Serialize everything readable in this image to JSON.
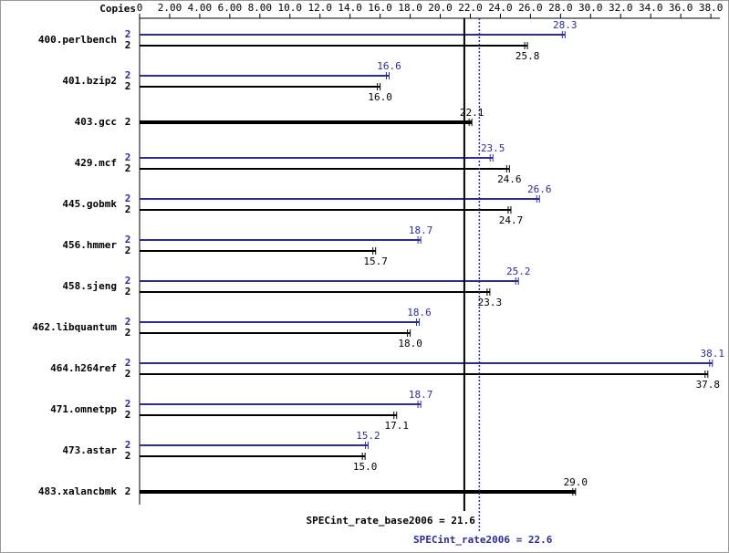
{
  "chart_data": {
    "type": "bar",
    "copies_header": "Copies",
    "categories": [
      "400.perlbench",
      "401.bzip2",
      "403.gcc",
      "429.mcf",
      "445.gobmk",
      "456.hmmer",
      "458.sjeng",
      "462.libquantum",
      "464.h264ref",
      "471.omnetpp",
      "473.astar",
      "483.xalancbmk"
    ],
    "series": [
      {
        "color": "#2b2b9b",
        "copies": [
          2,
          2,
          null,
          2,
          2,
          2,
          2,
          2,
          2,
          2,
          2,
          null
        ],
        "values": [
          28.3,
          16.6,
          null,
          23.5,
          26.6,
          18.7,
          25.2,
          18.6,
          38.1,
          18.7,
          15.2,
          null
        ],
        "value_labels": [
          "28.3",
          "16.6",
          null,
          "23.5",
          "26.6",
          "18.7",
          "25.2",
          "18.6",
          "38.1",
          "18.7",
          "15.2",
          null
        ]
      },
      {
        "color": "#000000",
        "copies": [
          2,
          2,
          2,
          2,
          2,
          2,
          2,
          2,
          2,
          2,
          2,
          2
        ],
        "values": [
          25.8,
          16.0,
          22.1,
          24.6,
          24.7,
          15.7,
          23.3,
          18.0,
          37.8,
          17.1,
          15.0,
          29.0
        ],
        "value_labels": [
          "25.8",
          "16.0",
          "22.1",
          "24.6",
          "24.7",
          "15.7",
          "23.3",
          "18.0",
          "37.8",
          "17.1",
          "15.0",
          "29.0"
        ]
      }
    ],
    "xlim": [
      0,
      38.6
    ],
    "xticks": [
      0,
      {
        "value": 2,
        "label": "2.00"
      },
      {
        "value": 4,
        "label": "4.00"
      },
      {
        "value": 6,
        "label": "6.00"
      },
      {
        "value": 8,
        "label": "8.00"
      },
      {
        "value": 10,
        "label": "10.0"
      },
      {
        "value": 12,
        "label": "12.0"
      },
      {
        "value": 14,
        "label": "14.0"
      },
      {
        "value": 16,
        "label": "16.0"
      },
      {
        "value": 18,
        "label": "18.0"
      },
      {
        "value": 20,
        "label": "20.0"
      },
      {
        "value": 22,
        "label": "22.0"
      },
      {
        "value": 24,
        "label": "24.0"
      },
      {
        "value": 26,
        "label": "26.0"
      },
      {
        "value": 28,
        "label": "28.0"
      },
      {
        "value": 30,
        "label": "30.0"
      },
      {
        "value": 32,
        "label": "32.0"
      },
      {
        "value": 34,
        "label": "34.0"
      },
      {
        "value": 36,
        "label": "36.0"
      },
      {
        "value": 38,
        "label": "38.0"
      }
    ],
    "base_mean": {
      "value": 21.6,
      "label": "SPECint_rate_base2006 = 21.6",
      "color": "#000000"
    },
    "peak_mean": {
      "value": 22.6,
      "label": "SPECint_rate2006 = 22.6",
      "color": "#2b2b9b"
    }
  }
}
